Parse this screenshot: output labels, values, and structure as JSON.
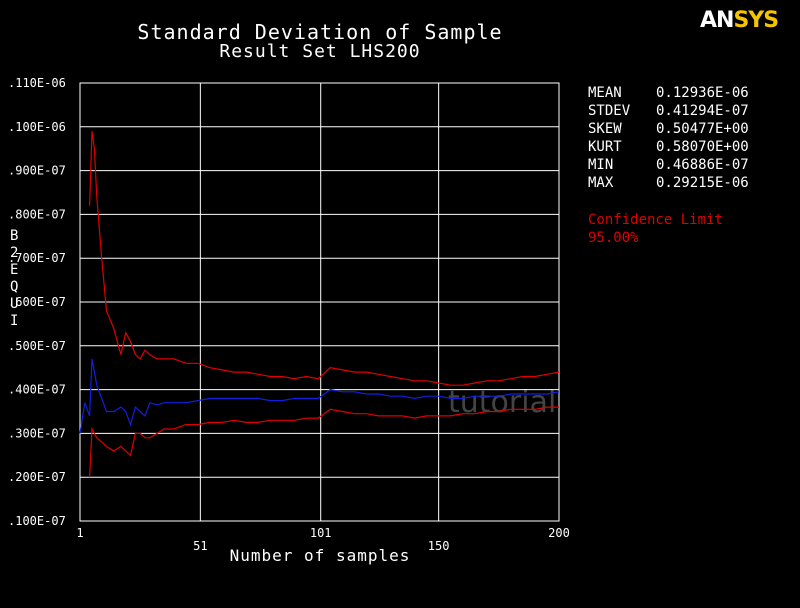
{
  "logo": {
    "an": "AN",
    "sys": "SYS"
  },
  "chart_data": {
    "type": "line",
    "title": "Standard Deviation of Sample",
    "subtitle": "Result Set LHS200",
    "xlabel": "Number of samples",
    "ylabel": "B2EQUI",
    "xlim": [
      1,
      200
    ],
    "ylim": [
      1e-08,
      1.1e-07
    ],
    "y_ticks": [
      ".100E-07",
      ".200E-07",
      ".300E-07",
      ".400E-07",
      ".500E-07",
      ".600E-07",
      ".700E-07",
      ".800E-07",
      ".900E-07",
      ".100E-06",
      ".110E-06"
    ],
    "x_ticks": [
      "1",
      "51",
      "101",
      "150",
      "200"
    ],
    "grid": true,
    "series": [
      {
        "color": "#e00000",
        "x": [
          5,
          6,
          7,
          8,
          10,
          12,
          15,
          18,
          20,
          22,
          24,
          26,
          28,
          30,
          33,
          36,
          40,
          45,
          50,
          55,
          60,
          65,
          70,
          75,
          80,
          85,
          90,
          95,
          100,
          105,
          110,
          115,
          120,
          125,
          130,
          135,
          140,
          145,
          150,
          155,
          160,
          165,
          170,
          175,
          180,
          185,
          190,
          195,
          200
        ],
        "y": [
          8.2e-08,
          9.9e-08,
          9.5e-08,
          8.4e-08,
          7e-08,
          5.8e-08,
          5.4e-08,
          4.8e-08,
          5.3e-08,
          5.1e-08,
          4.8e-08,
          4.7e-08,
          4.9e-08,
          4.8e-08,
          4.7e-08,
          4.7e-08,
          4.7e-08,
          4.6e-08,
          4.6e-08,
          4.5e-08,
          4.45e-08,
          4.4e-08,
          4.4e-08,
          4.35e-08,
          4.3e-08,
          4.3e-08,
          4.25e-08,
          4.3e-08,
          4.25e-08,
          4.5e-08,
          4.45e-08,
          4.4e-08,
          4.4e-08,
          4.35e-08,
          4.3e-08,
          4.25e-08,
          4.2e-08,
          4.2e-08,
          4.15e-08,
          4.1e-08,
          4.1e-08,
          4.15e-08,
          4.2e-08,
          4.2e-08,
          4.25e-08,
          4.3e-08,
          4.3e-08,
          4.35e-08,
          4.4e-08
        ]
      },
      {
        "color": "#1020e0",
        "x": [
          1,
          3,
          5,
          6,
          7,
          8,
          10,
          12,
          15,
          18,
          20,
          22,
          24,
          26,
          28,
          30,
          33,
          36,
          40,
          45,
          50,
          55,
          60,
          65,
          70,
          75,
          80,
          85,
          90,
          95,
          100,
          105,
          110,
          115,
          120,
          125,
          130,
          135,
          140,
          145,
          150,
          155,
          160,
          165,
          170,
          175,
          180,
          185,
          190,
          195,
          200
        ],
        "y": [
          3e-08,
          3.7e-08,
          3.4e-08,
          4.7e-08,
          4.4e-08,
          4.1e-08,
          3.8e-08,
          3.5e-08,
          3.5e-08,
          3.6e-08,
          3.5e-08,
          3.2e-08,
          3.6e-08,
          3.5e-08,
          3.4e-08,
          3.7e-08,
          3.65e-08,
          3.7e-08,
          3.7e-08,
          3.7e-08,
          3.75e-08,
          3.8e-08,
          3.8e-08,
          3.8e-08,
          3.8e-08,
          3.8e-08,
          3.75e-08,
          3.75e-08,
          3.8e-08,
          3.8e-08,
          3.8e-08,
          4e-08,
          3.95e-08,
          3.95e-08,
          3.9e-08,
          3.9e-08,
          3.85e-08,
          3.85e-08,
          3.8e-08,
          3.85e-08,
          3.85e-08,
          3.8e-08,
          3.8e-08,
          3.85e-08,
          3.85e-08,
          3.85e-08,
          3.9e-08,
          3.9e-08,
          3.9e-08,
          3.9e-08,
          3.95e-08
        ]
      },
      {
        "color": "#e00000",
        "x": [
          5,
          6,
          7,
          8,
          10,
          12,
          15,
          18,
          20,
          22,
          24,
          26,
          28,
          30,
          33,
          36,
          40,
          45,
          50,
          55,
          60,
          65,
          70,
          75,
          80,
          85,
          90,
          95,
          100,
          105,
          110,
          115,
          120,
          125,
          130,
          135,
          140,
          145,
          150,
          155,
          160,
          165,
          170,
          175,
          180,
          185,
          190,
          195,
          200
        ],
        "y": [
          2e-08,
          3.1e-08,
          3e-08,
          2.9e-08,
          2.8e-08,
          2.7e-08,
          2.6e-08,
          2.7e-08,
          2.6e-08,
          2.5e-08,
          3e-08,
          3e-08,
          2.9e-08,
          2.9e-08,
          3e-08,
          3.1e-08,
          3.1e-08,
          3.2e-08,
          3.2e-08,
          3.25e-08,
          3.25e-08,
          3.3e-08,
          3.25e-08,
          3.25e-08,
          3.3e-08,
          3.3e-08,
          3.3e-08,
          3.35e-08,
          3.35e-08,
          3.55e-08,
          3.5e-08,
          3.45e-08,
          3.45e-08,
          3.4e-08,
          3.4e-08,
          3.4e-08,
          3.35e-08,
          3.4e-08,
          3.4e-08,
          3.4e-08,
          3.45e-08,
          3.45e-08,
          3.5e-08,
          3.5e-08,
          3.55e-08,
          3.55e-08,
          3.55e-08,
          3.6e-08,
          3.6e-08
        ]
      }
    ]
  },
  "stats": [
    {
      "label": "MEAN",
      "value": "0.12936E-06"
    },
    {
      "label": "STDEV",
      "value": "0.41294E-07"
    },
    {
      "label": "SKEW",
      "value": "0.50477E+00"
    },
    {
      "label": "KURT",
      "value": "0.58070E+00"
    },
    {
      "label": "MIN",
      "value": "0.46886E-07"
    },
    {
      "label": "MAX",
      "value": "0.29215E-06"
    }
  ],
  "confidence": {
    "label": "Confidence Limit",
    "value": "95.00%"
  },
  "watermark": "tutorial",
  "colors": {
    "upper": "#e00000",
    "mean": "#1020e0",
    "lower": "#e00000",
    "grid": "#ffffff"
  }
}
